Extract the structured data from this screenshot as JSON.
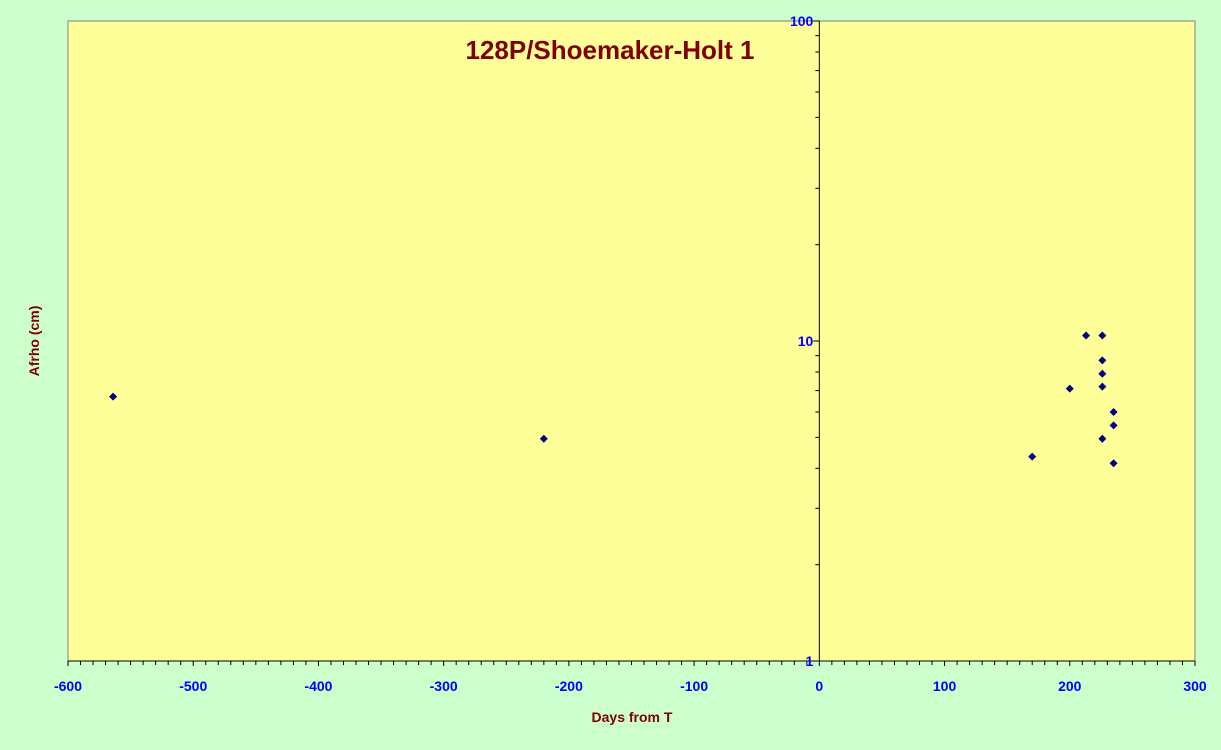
{
  "chart_data": {
    "type": "scatter",
    "title": "128P/Shoemaker-Holt 1",
    "xlabel": "Days from T",
    "ylabel": "Afrho (cm)",
    "xlim": [
      -600,
      300
    ],
    "ylim": [
      1,
      100
    ],
    "y_scale": "log",
    "x_ticks": [
      -600,
      -500,
      -400,
      -300,
      -200,
      -100,
      0,
      100,
      200,
      300
    ],
    "x_tick_labels": [
      "-600",
      "-500",
      "-400",
      "-300",
      "-200",
      "-100",
      "0",
      "100",
      "200",
      "300"
    ],
    "y_ticks": [
      1,
      10,
      100
    ],
    "y_tick_labels": [
      "1",
      "10",
      "100"
    ],
    "grid": false,
    "legend": "none",
    "colors": {
      "background": "#ccffcc",
      "plot_area": "#ffff99",
      "marker": "#000080",
      "axis_title": "#800000",
      "tick_label": "#0000ff"
    },
    "series": [
      {
        "marker": "diamond",
        "points": [
          {
            "x": -564,
            "y": 6.7
          },
          {
            "x": -220,
            "y": 4.95
          },
          {
            "x": 170,
            "y": 4.35
          },
          {
            "x": 200,
            "y": 7.1
          },
          {
            "x": 213,
            "y": 10.4
          },
          {
            "x": 226,
            "y": 10.4
          },
          {
            "x": 226,
            "y": 8.7
          },
          {
            "x": 226,
            "y": 7.9
          },
          {
            "x": 226,
            "y": 7.2
          },
          {
            "x": 226,
            "y": 4.95
          },
          {
            "x": 235,
            "y": 6.0
          },
          {
            "x": 235,
            "y": 5.45
          },
          {
            "x": 235,
            "y": 4.15
          }
        ]
      }
    ]
  }
}
